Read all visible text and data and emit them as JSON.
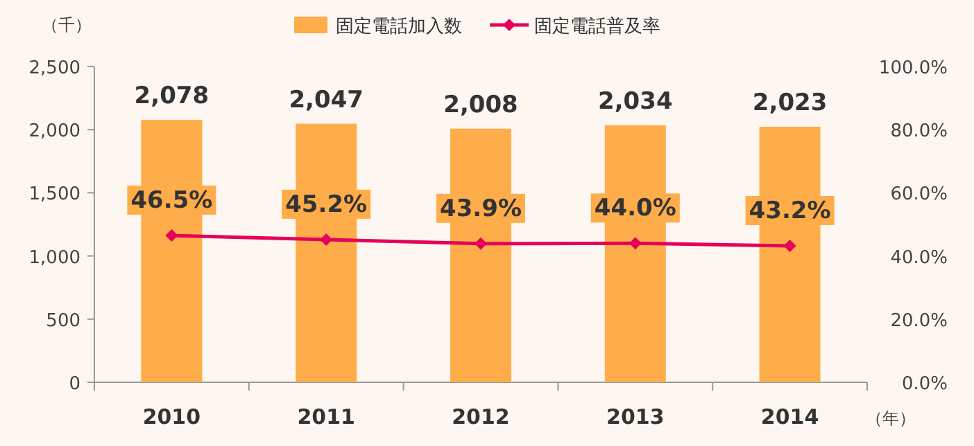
{
  "chart_data": {
    "type": "bar",
    "categories": [
      "2010",
      "2011",
      "2012",
      "2013",
      "2014"
    ],
    "series": [
      {
        "name": "固定電話加入数",
        "color": "#ffad4a",
        "values": [
          2078,
          2047,
          2008,
          2034,
          2023
        ],
        "value_labels": [
          "2,078",
          "2,047",
          "2,008",
          "2,034",
          "2,023"
        ]
      },
      {
        "name": "固定電話普及率",
        "type": "line",
        "axis": "y2",
        "color": "#e6005c",
        "values": [
          46.5,
          45.2,
          43.9,
          44.0,
          43.2
        ],
        "value_labels": [
          "46.5%",
          "45.2%",
          "43.9%",
          "44.0%",
          "43.2%"
        ]
      }
    ],
    "ylim": [
      0,
      2500
    ],
    "yticks": [
      {
        "value": 0,
        "label": "0"
      },
      {
        "value": 500,
        "label": "500"
      },
      {
        "value": 1000,
        "label": "1,000"
      },
      {
        "value": 1500,
        "label": "1,500"
      },
      {
        "value": 2000,
        "label": "2,000"
      },
      {
        "value": 2500,
        "label": "2,500"
      }
    ],
    "y2lim": [
      0,
      100
    ],
    "y2ticks": [
      {
        "value": 0,
        "label": "0.0%"
      },
      {
        "value": 20,
        "label": "20.0%"
      },
      {
        "value": 40,
        "label": "40.0%"
      },
      {
        "value": 60,
        "label": "60.0%"
      },
      {
        "value": 80,
        "label": "80.0%"
      },
      {
        "value": 100,
        "label": "100.0%"
      }
    ],
    "ylabel": "（千）",
    "xlabel": "（年）",
    "legend": "top",
    "marker": "diamond",
    "line_style": "solid",
    "grid": false
  }
}
